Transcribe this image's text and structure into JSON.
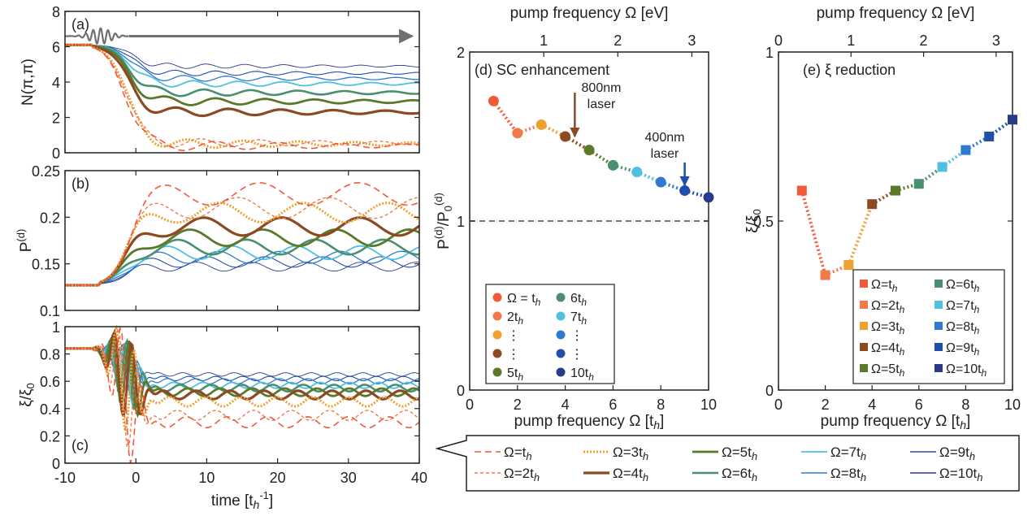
{
  "chart_data": [
    {
      "id": "a",
      "type": "line",
      "panel_label": "(a)",
      "xlabel": "",
      "ylabel": "N(π,π)",
      "xlim": [
        -10,
        40
      ],
      "ylim": [
        0,
        8
      ],
      "yticks": [
        "0",
        "2",
        "4",
        "6",
        "8"
      ],
      "series": [
        {
          "name": "Ω=t_h",
          "color": "#f05a3a",
          "final": 0.4
        },
        {
          "name": "Ω=2t_h",
          "color": "#f07a4a",
          "final": 0.55
        },
        {
          "name": "Ω=3t_h",
          "color": "#f0a030",
          "final": 0.5
        },
        {
          "name": "Ω=4t_h",
          "color": "#8b4a22",
          "final": 2.3
        },
        {
          "name": "Ω=5t_h",
          "color": "#5a7a2a",
          "final": 2.9
        },
        {
          "name": "Ω=6t_h",
          "color": "#4a9070",
          "final": 3.4
        },
        {
          "name": "Ω=7t_h",
          "color": "#4fc0e0",
          "final": 3.9
        },
        {
          "name": "Ω=8t_h",
          "color": "#2f7ad0",
          "final": 4.2
        },
        {
          "name": "Ω=9t_h",
          "color": "#1f4fa8",
          "final": 4.5
        },
        {
          "name": "Ω=10t_h",
          "color": "#283a8a",
          "final": 4.9
        }
      ]
    },
    {
      "id": "b",
      "type": "line",
      "panel_label": "(b)",
      "xlabel": "",
      "ylabel": "P^(d)",
      "xlim": [
        -10,
        40
      ],
      "ylim": [
        0.1,
        0.25
      ],
      "yticks": [
        "0.1",
        "0.15",
        "0.2",
        "0.25"
      ],
      "series_final": [
        0.225,
        0.21,
        0.205,
        0.19,
        0.178,
        0.168,
        0.162,
        0.157,
        0.152,
        0.147
      ]
    },
    {
      "id": "c",
      "type": "line",
      "panel_label": "(c)",
      "xlabel": "time [t_h^-1]",
      "ylabel": "ξ/ξ0",
      "xlim": [
        -10,
        40
      ],
      "ylim": [
        0,
        1
      ],
      "yticks": [
        "0",
        "0.2",
        "0.4",
        "0.6",
        "0.8",
        "1"
      ],
      "xticks": [
        "-10",
        "0",
        "10",
        "20",
        "30",
        "40"
      ],
      "series_final": [
        0.3,
        0.35,
        0.45,
        0.5,
        0.52,
        0.55,
        0.57,
        0.6,
        0.62,
        0.65
      ]
    },
    {
      "id": "d",
      "type": "scatter",
      "panel_label": "(d) SC enhancement",
      "xlabel": "pump frequency Ω [t_h]",
      "x2label": "pump frequency Ω [eV]",
      "ylabel": "P^(d)/P0^(d)",
      "xlim": [
        0,
        10
      ],
      "ylim": [
        0,
        2
      ],
      "xticks": [
        "0",
        "2",
        "4",
        "6",
        "8",
        "10"
      ],
      "x2ticks": [
        "1",
        "2",
        "3"
      ],
      "yticks": [
        "0",
        "1",
        "2"
      ],
      "x": [
        1,
        2,
        3,
        4,
        5,
        6,
        7,
        8,
        9,
        10
      ],
      "y": [
        1.71,
        1.52,
        1.57,
        1.5,
        1.42,
        1.33,
        1.29,
        1.23,
        1.18,
        1.14
      ],
      "reference_line": 1,
      "annotations": [
        {
          "text": [
            "800nm",
            "laser"
          ],
          "x": 4.4,
          "color": "#8b4a22"
        },
        {
          "text": [
            "400nm",
            "laser"
          ],
          "x": 9,
          "color": "#1f4fa8"
        }
      ],
      "legend": [
        {
          "label": "Ω = t_h",
          "ci": 0
        },
        {
          "label": "2t_h",
          "ci": 1
        },
        {
          "label": "⋮",
          "ci": 2
        },
        {
          "label": "⋮",
          "ci": 3
        },
        {
          "label": "5t_h",
          "ci": 4
        },
        {
          "label": "6t_h",
          "ci": 5
        },
        {
          "label": "7t_h",
          "ci": 6
        },
        {
          "label": "⋮",
          "ci": 7
        },
        {
          "label": "⋮",
          "ci": 8
        },
        {
          "label": "10t_h",
          "ci": 9
        }
      ]
    },
    {
      "id": "e",
      "type": "scatter",
      "panel_label": "(e) ξ reduction",
      "xlabel": "pump frequency Ω [t_h]",
      "x2label": "pump frequency Ω [eV]",
      "ylabel": "ξ/ξ0",
      "xlim": [
        0,
        10
      ],
      "ylim": [
        0,
        1
      ],
      "xticks": [
        "0",
        "2",
        "4",
        "6",
        "8",
        "10"
      ],
      "x2ticks": [
        "0",
        "1",
        "2",
        "3"
      ],
      "yticks": [
        "0",
        "0.5",
        "1"
      ],
      "x": [
        1,
        2,
        3,
        4,
        5,
        6,
        7,
        8,
        9,
        10
      ],
      "y": [
        0.59,
        0.34,
        0.37,
        0.55,
        0.59,
        0.61,
        0.66,
        0.71,
        0.75,
        0.8
      ],
      "legend": [
        "Ω=t_h",
        "Ω=2t_h",
        "Ω=3t_h",
        "Ω=4t_h",
        "Ω=5t_h",
        "Ω=6t_h",
        "Ω=7t_h",
        "Ω=8t_h",
        "Ω=9t_h",
        "Ω=10t_h"
      ]
    }
  ],
  "bottom_legend": [
    "Ω=t_h",
    "Ω=2t_h",
    "Ω=3t_h",
    "Ω=4t_h",
    "Ω=5t_h",
    "Ω=6t_h",
    "Ω=7t_h",
    "Ω=8t_h",
    "Ω=9t_h",
    "Ω=10t_h"
  ]
}
